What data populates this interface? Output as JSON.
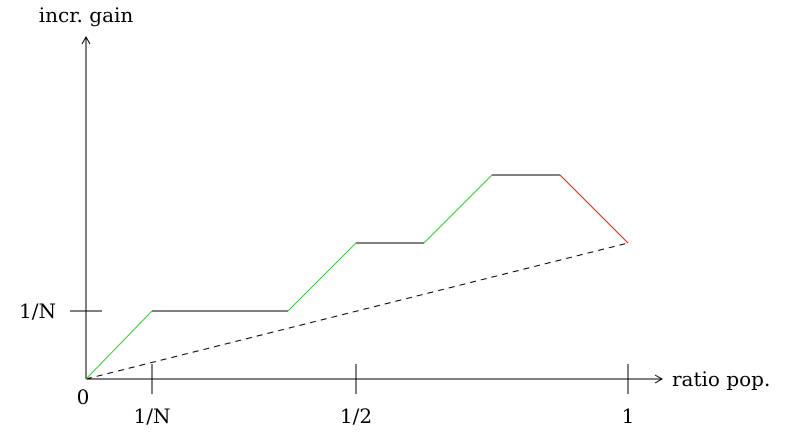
{
  "labels": {
    "y_axis": "incr. gain",
    "x_axis": "ratio pop.",
    "origin": "0",
    "x_tick_1_over_n": "1/N",
    "x_tick_half": "1/2",
    "x_tick_one": "1",
    "y_tick_1_over_n": "1/N"
  },
  "colors": {
    "axis": "#000000",
    "rising_segment": "#33cc33",
    "flat_segment": "#000000",
    "falling_segment": "#e8141b",
    "dashed_line": "#000000"
  }
}
